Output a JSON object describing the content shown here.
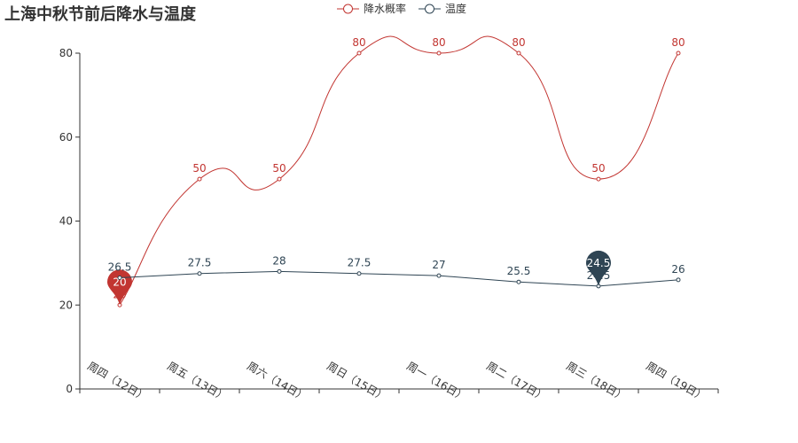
{
  "chart_data": {
    "type": "line",
    "title": "上海中秋节前后降水与温度",
    "categories": [
      "周四（12日）",
      "周五（13日）",
      "周六（14日）",
      "周日（15日）",
      "周一（16日）",
      "周二（17日）",
      "周三（18日）",
      "周四（19日）"
    ],
    "ylim": [
      0,
      80
    ],
    "yticks": [
      0,
      20,
      40,
      60,
      80
    ],
    "grid": false,
    "legend_position": "top-center",
    "series": [
      {
        "name": "降水概率",
        "values": [
          20,
          50,
          50,
          80,
          80,
          80,
          50,
          80
        ],
        "color": "#c23531",
        "smooth": true,
        "markpoint": {
          "label": "20",
          "index": 0,
          "kind": "min"
        }
      },
      {
        "name": "温度",
        "values": [
          26.5,
          27.5,
          28,
          27.5,
          27,
          25.5,
          24.5,
          26
        ],
        "color": "#2f4554",
        "smooth": false,
        "markpoint": {
          "label": "24.5",
          "index": 6,
          "kind": "min"
        }
      }
    ]
  }
}
